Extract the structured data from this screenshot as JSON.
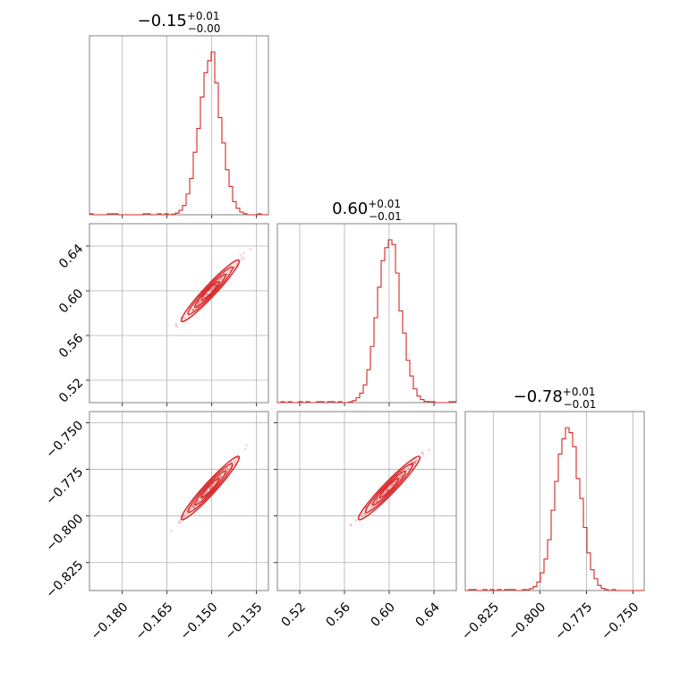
{
  "chart_data": {
    "type": "corner",
    "color": "#d62728",
    "parameters": [
      {
        "title_value": "−0.15",
        "title_plus": "+0.01",
        "title_minus": "−0.00",
        "range": [
          -0.191,
          -0.131
        ],
        "ticks": [
          -0.18,
          -0.165,
          -0.15,
          -0.135
        ],
        "tick_labels": [
          "−0.180",
          "−0.165",
          "−0.150",
          "−0.135"
        ],
        "median": -0.1505,
        "sigma": 0.0037,
        "hist_bins": 50
      },
      {
        "title_value": "0.60",
        "title_plus": "+0.01",
        "title_minus": "−0.01",
        "range": [
          0.5,
          0.66
        ],
        "ticks": [
          0.52,
          0.56,
          0.6,
          0.64
        ],
        "tick_labels": [
          "0.52",
          "0.56",
          "0.60",
          "0.64"
        ],
        "median": 0.6,
        "sigma": 0.0105,
        "hist_bins": 50
      },
      {
        "title_value": "−0.78",
        "title_plus": "+0.01",
        "title_minus": "−0.01",
        "range": [
          -0.84,
          -0.744
        ],
        "ticks": [
          -0.825,
          -0.8,
          -0.775,
          -0.75
        ],
        "tick_labels": [
          "−0.825",
          "−0.800",
          "−0.775",
          "−0.750"
        ],
        "median": -0.785,
        "sigma": 0.0065,
        "hist_bins": 50
      }
    ],
    "correlation": 0.985,
    "grid": true
  }
}
